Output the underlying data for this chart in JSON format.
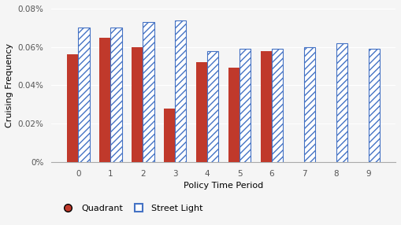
{
  "categories": [
    0,
    1,
    2,
    3,
    4,
    5,
    6,
    7,
    8,
    9
  ],
  "quadrant": [
    0.00056,
    0.00065,
    0.0006,
    0.00028,
    0.00052,
    0.00049,
    0.00058,
    0.0,
    0.0,
    0.0
  ],
  "streetlight": [
    0.0007,
    0.0007,
    0.00073,
    0.00074,
    0.00058,
    0.00059,
    0.00059,
    0.0006,
    0.00062,
    0.00059
  ],
  "quadrant_color": "#C0392B",
  "streetlight_facecolor": "white",
  "streetlight_edgecolor": "#4472C4",
  "xlabel": "Policy Time Period",
  "ylabel": "Cruising Frequency",
  "ylim": [
    0,
    0.0008
  ],
  "yticks": [
    0,
    0.0002,
    0.0004,
    0.0006,
    0.0008
  ],
  "ytick_labels": [
    "0%",
    "0.02%",
    "0.04%",
    "0.06%",
    "0.08%"
  ],
  "legend_quadrant": "Quadrant",
  "legend_streetlight": "Street Light",
  "bar_width": 0.35,
  "figsize": [
    5.09,
    2.86
  ],
  "dpi": 100,
  "bg_color": "#F5F5F5",
  "grid_color": "#FFFFFF",
  "xlabel_fontsize": 8,
  "ylabel_fontsize": 8,
  "tick_fontsize": 7.5
}
